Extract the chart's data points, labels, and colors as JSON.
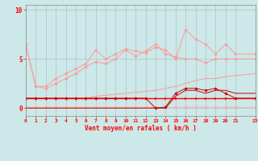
{
  "x": [
    0,
    1,
    2,
    3,
    4,
    5,
    6,
    7,
    8,
    9,
    10,
    11,
    12,
    13,
    14,
    15,
    16,
    17,
    18,
    19,
    20,
    21,
    23
  ],
  "line_gust_max": [
    6.5,
    2.2,
    2.2,
    3.0,
    3.5,
    4.0,
    4.5,
    5.9,
    5.0,
    5.5,
    6.0,
    5.8,
    5.6,
    6.2,
    5.9,
    5.0,
    8.0,
    7.0,
    6.5,
    5.5,
    6.5,
    5.5,
    5.5
  ],
  "line_gust_mean": [
    6.5,
    2.2,
    2.0,
    2.5,
    3.0,
    3.5,
    4.2,
    4.7,
    4.5,
    5.0,
    5.9,
    5.3,
    5.8,
    6.5,
    5.5,
    5.2,
    5.0,
    5.0,
    4.6,
    5.0,
    5.0,
    5.0,
    5.0
  ],
  "line_trend": [
    1.0,
    1.0,
    1.0,
    1.0,
    1.0,
    1.0,
    1.0,
    1.2,
    1.3,
    1.4,
    1.5,
    1.6,
    1.7,
    1.8,
    2.0,
    2.2,
    2.5,
    2.8,
    3.0,
    3.0,
    3.2,
    3.3,
    3.5
  ],
  "line_flat_red": [
    1.0,
    1.0,
    1.0,
    1.0,
    1.0,
    1.0,
    1.0,
    1.0,
    1.0,
    1.0,
    1.0,
    1.0,
    1.0,
    1.0,
    1.0,
    1.0,
    1.0,
    1.0,
    1.0,
    1.0,
    1.0,
    1.0,
    1.0
  ],
  "line_low1": [
    0.1,
    0.1,
    0.1,
    0.1,
    0.1,
    0.1,
    0.1,
    0.1,
    0.1,
    0.1,
    0.1,
    0.1,
    0.1,
    0.1,
    0.1,
    0.1,
    0.1,
    0.1,
    0.1,
    0.1,
    0.1,
    0.1,
    0.1
  ],
  "line_vshape": [
    1.0,
    1.0,
    1.0,
    1.0,
    1.0,
    1.0,
    1.0,
    1.0,
    1.0,
    1.0,
    1.0,
    1.0,
    1.0,
    0.0,
    0.1,
    1.5,
    2.0,
    2.0,
    1.8,
    2.0,
    1.5,
    1.0,
    1.0
  ],
  "line_rise": [
    0.0,
    0.0,
    0.0,
    0.0,
    0.0,
    0.0,
    0.0,
    0.0,
    0.0,
    0.0,
    0.0,
    0.0,
    0.0,
    0.0,
    0.0,
    1.2,
    1.8,
    1.8,
    1.5,
    1.8,
    1.8,
    1.5,
    1.5
  ],
  "bg_color": "#cce8e8",
  "grid_color": "#aabbbb",
  "color_light_pink": "#ff9999",
  "color_pink": "#ffaaaa",
  "color_red": "#ff0000",
  "color_dark_red": "#cc0000",
  "xlabel": "Vent moyen/en rafales ( km/h )",
  "ytick_labels": [
    "0",
    "5",
    "10"
  ],
  "ytick_vals": [
    0,
    5,
    10
  ],
  "xlim": [
    0,
    23
  ],
  "ylim": [
    -0.8,
    10.5
  ],
  "figsize": [
    3.2,
    2.0
  ],
  "dpi": 100
}
